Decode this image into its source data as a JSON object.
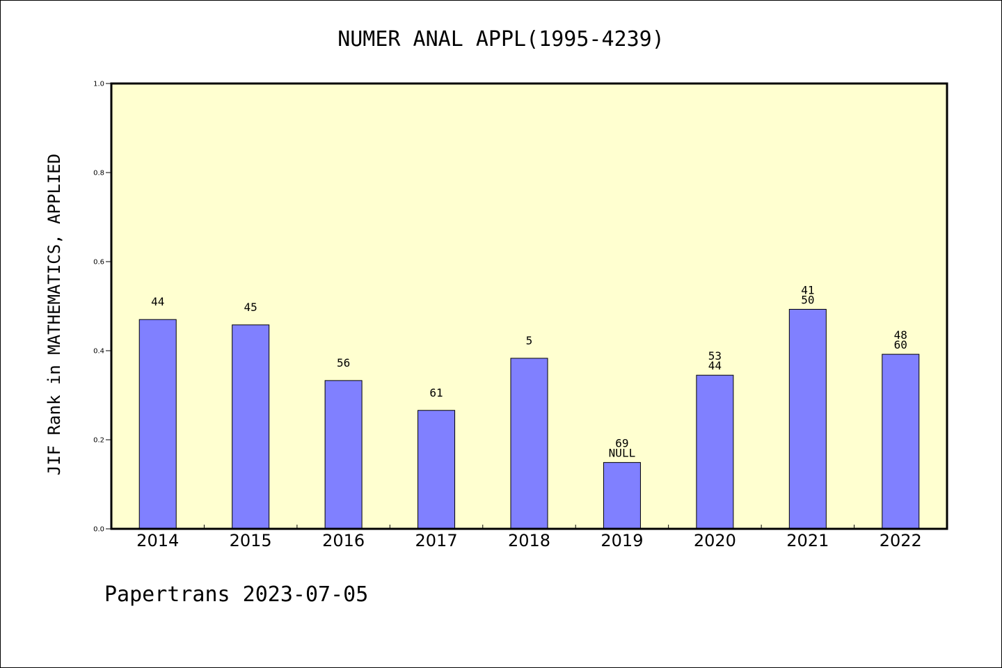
{
  "chart_data": {
    "type": "bar",
    "title": "NUMER ANAL APPL(1995-4239)",
    "xlabel": "",
    "ylabel": "JIF Rank in MATHEMATICS, APPLIED",
    "ylim": [
      0,
      1.0
    ],
    "yticks": [
      "0.0",
      "0.2",
      "0.4",
      "0.6",
      "0.8",
      "1.0"
    ],
    "categories": [
      "2014",
      "2015",
      "2016",
      "2017",
      "2018",
      "2019",
      "2020",
      "2021",
      "2022"
    ],
    "values": [
      0.47,
      0.458,
      0.333,
      0.266,
      0.383,
      0.149,
      0.345,
      0.493,
      0.392
    ],
    "labels": [
      [
        "44"
      ],
      [
        "45"
      ],
      [
        "56"
      ],
      [
        "61"
      ],
      [
        "5"
      ],
      [
        "69",
        "NULL"
      ],
      [
        "53",
        "44"
      ],
      [
        "41",
        "50"
      ],
      [
        "48",
        "60"
      ]
    ],
    "grid": false,
    "colors": {
      "plot_background": "#ffffd0",
      "bar_fill": "#8080ff",
      "bar_stroke": "#000000"
    }
  },
  "footer": "Papertrans 2023-07-05"
}
